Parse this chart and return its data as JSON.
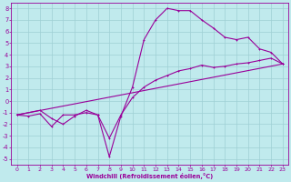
{
  "xlabel": "Windchill (Refroidissement éolien,°C)",
  "xlim": [
    -0.5,
    23.5
  ],
  "ylim": [
    -5.5,
    8.5
  ],
  "xticks": [
    0,
    1,
    2,
    3,
    4,
    5,
    6,
    7,
    8,
    9,
    10,
    11,
    12,
    13,
    14,
    15,
    16,
    17,
    18,
    19,
    20,
    21,
    22,
    23
  ],
  "yticks": [
    -5,
    -4,
    -3,
    -2,
    -1,
    0,
    1,
    2,
    3,
    4,
    5,
    6,
    7,
    8
  ],
  "bg_color": "#c0eaed",
  "line_color": "#990099",
  "grid_color": "#9ecfd4",
  "curve1_x": [
    0,
    1,
    2,
    3,
    4,
    5,
    6,
    7,
    8,
    9,
    10,
    11,
    12,
    13,
    14,
    15,
    16,
    17,
    18,
    19,
    20,
    21,
    22,
    23
  ],
  "curve1_y": [
    -1.2,
    -1.3,
    -1.1,
    -2.2,
    -1.2,
    -1.2,
    -1.0,
    -1.2,
    -4.8,
    -1.3,
    1.2,
    5.3,
    7.0,
    8.0,
    7.8,
    7.8,
    7.0,
    6.3,
    5.5,
    5.3,
    5.5,
    4.5,
    4.2,
    3.2
  ],
  "curve2_x": [
    0,
    23
  ],
  "curve2_y": [
    -1.2,
    3.2
  ],
  "curve3_x": [
    0,
    2,
    3,
    4,
    5,
    6,
    7,
    8,
    9,
    10,
    11,
    12,
    13,
    14,
    15,
    16,
    17,
    18,
    19,
    20,
    21,
    22,
    23
  ],
  "curve3_y": [
    -1.2,
    -0.8,
    -1.5,
    -2.0,
    -1.3,
    -0.8,
    -1.2,
    -3.2,
    -1.2,
    0.3,
    1.2,
    1.8,
    2.2,
    2.6,
    2.8,
    3.1,
    2.9,
    3.0,
    3.2,
    3.3,
    3.5,
    3.7,
    3.2
  ]
}
